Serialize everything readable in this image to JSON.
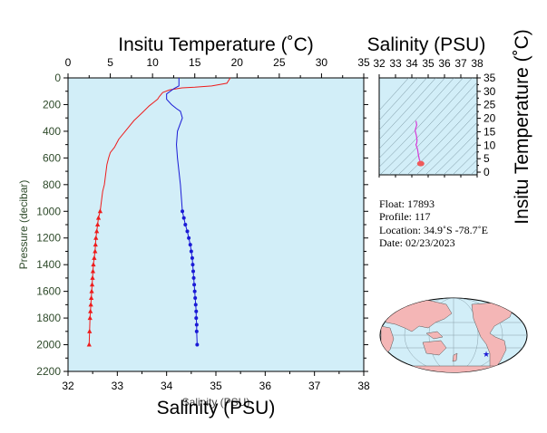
{
  "colors": {
    "plot_bg": "#d2eef8",
    "temperature": "#ee1c1c",
    "salinity": "#1a1ad6",
    "ts_curve": "#d63ad6",
    "ts_end": "#ee5a5a",
    "land": "#f4b6b6",
    "ocean": "#d2eef8",
    "pressure_axis": "#2e4a2a",
    "float_marker": "#1a1ad6"
  },
  "main": {
    "temp_title": "Insitu Temperature (˚C)",
    "temp_ticks": [
      "0",
      "5",
      "10",
      "15",
      "20",
      "25",
      "30",
      "35"
    ],
    "sal_title_bottom": "Salinity (PSU)",
    "sal_title_bottom_ghost": "Salinity (PSU)",
    "sal_ticks": [
      "32",
      "33",
      "34",
      "35",
      "36",
      "37",
      "38"
    ],
    "pressure_label": "Pressure (decibar)",
    "pressure_ticks": [
      "0",
      "200",
      "400",
      "600",
      "800",
      "1000",
      "1200",
      "1400",
      "1600",
      "1800",
      "2000",
      "2200"
    ]
  },
  "ts_panel": {
    "title": "Salinity (PSU)",
    "x_ticks": [
      "32",
      "33",
      "34",
      "35",
      "36",
      "37",
      "38"
    ],
    "y_ticks": [
      "0",
      "5",
      "10",
      "15",
      "20",
      "25",
      "30",
      "35"
    ],
    "y_label": "Insitu Temperature (˚C)"
  },
  "info": {
    "float": "Float:  17893",
    "profile": "Profile:  117",
    "location": "Location:  34.9˚S  -78.7˚E",
    "date": "Date:  02/23/2023"
  },
  "chart_data": [
    {
      "type": "line",
      "title": "",
      "xlabel": "Insitu Temperature (˚C)",
      "ylabel": "Pressure (decibar)",
      "xlim": [
        0,
        35
      ],
      "ylim": [
        2200,
        0
      ],
      "series": [
        {
          "name": "Insitu Temperature (˚C)",
          "x": [
            19.2,
            18.8,
            17.0,
            15.0,
            13.5,
            12.0,
            11.2,
            10.8,
            10.6,
            10.2,
            9.6,
            8.8,
            7.8,
            6.9,
            6.0,
            5.5,
            5.0,
            4.8,
            4.6,
            4.5,
            4.4,
            4.3,
            4.1,
            4.0,
            3.9,
            3.8,
            3.6,
            3.5,
            3.4,
            3.3,
            3.25,
            3.2,
            3.1,
            3.0,
            2.95,
            2.9,
            2.85,
            2.8,
            2.75,
            2.7,
            2.65,
            2.6,
            2.55,
            2.5
          ],
          "y": [
            0,
            40,
            60,
            70,
            75,
            90,
            110,
            140,
            160,
            180,
            210,
            260,
            320,
            390,
            460,
            520,
            560,
            600,
            650,
            700,
            750,
            800,
            850,
            900,
            950,
            1000,
            1050,
            1100,
            1150,
            1200,
            1250,
            1300,
            1350,
            1400,
            1450,
            1500,
            1550,
            1600,
            1650,
            1700,
            1750,
            1800,
            1900,
            2000
          ]
        },
        {
          "name": "Salinity (PSU)",
          "x": [
            34.25,
            34.25,
            34.15,
            34.0,
            34.0,
            34.1,
            34.2,
            34.28,
            34.32,
            34.22,
            34.2,
            34.22,
            34.25,
            34.28,
            34.3,
            34.32,
            34.35,
            34.38,
            34.42,
            34.45,
            34.48,
            34.5,
            34.52,
            34.53,
            34.54,
            34.55,
            34.56,
            34.57,
            34.58,
            34.59,
            34.6,
            34.6,
            34.61,
            34.61,
            34.62
          ],
          "y": [
            0,
            60,
            80,
            120,
            160,
            200,
            230,
            250,
            300,
            400,
            500,
            600,
            700,
            800,
            900,
            1000,
            1050,
            1100,
            1150,
            1200,
            1250,
            1300,
            1350,
            1400,
            1450,
            1500,
            1550,
            1600,
            1650,
            1700,
            1750,
            1800,
            1850,
            1900,
            2000
          ]
        }
      ],
      "secondary_xlabel": "Salinity (PSU)",
      "secondary_xlim": [
        32,
        38
      ],
      "grid": false
    },
    {
      "type": "line",
      "title": "Salinity (PSU)",
      "xlabel": "Salinity (PSU)",
      "ylabel": "Insitu Temperature (˚C)",
      "xlim": [
        32,
        38
      ],
      "ylim": [
        -1,
        35
      ],
      "series": [
        {
          "name": "",
          "x": [
            34.25,
            34.3,
            34.2,
            34.28,
            34.32,
            34.3,
            34.25,
            34.35,
            34.4,
            34.45,
            34.5,
            34.55,
            34.6
          ],
          "y": [
            19.0,
            17.5,
            15.5,
            13.5,
            12.0,
            10.8,
            10.2,
            8.5,
            6.5,
            5.0,
            4.0,
            3.2,
            2.5
          ]
        }
      ],
      "grid": false
    }
  ]
}
